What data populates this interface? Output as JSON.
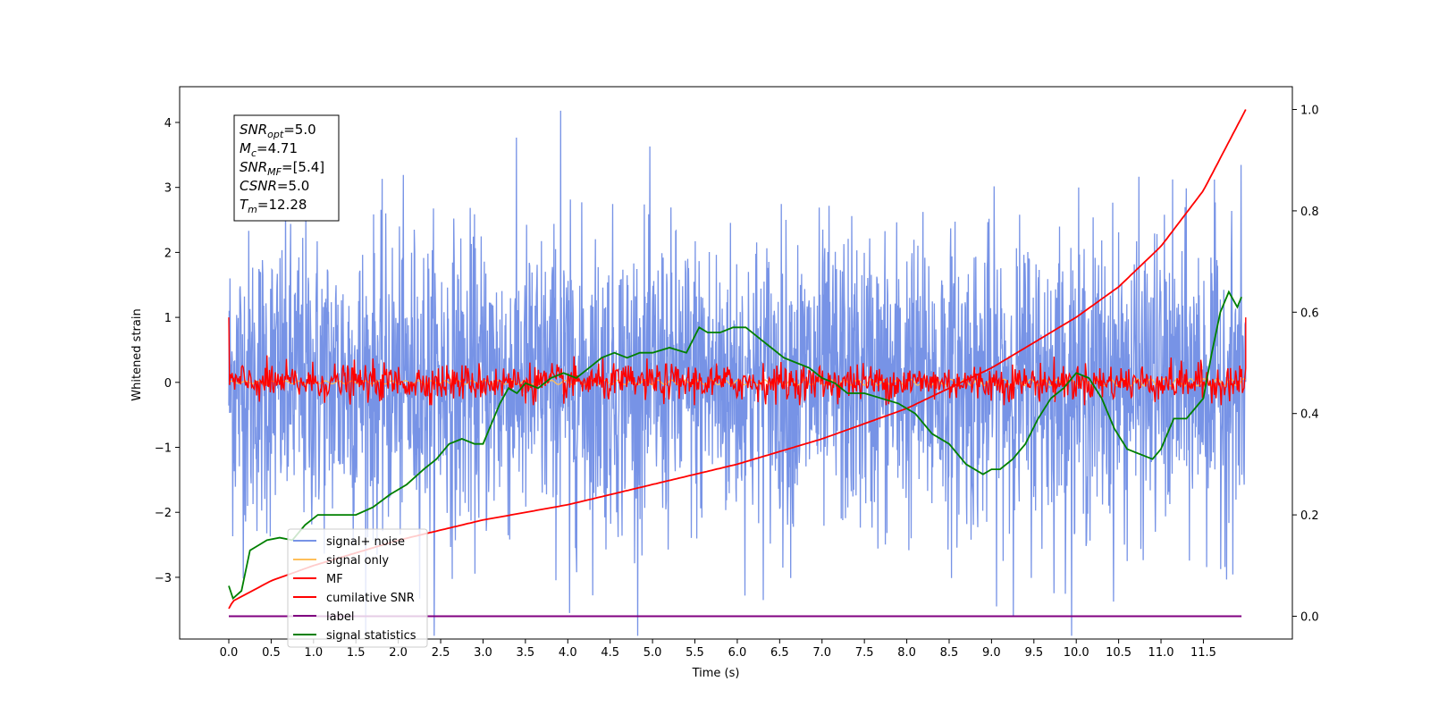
{
  "chart_data": {
    "type": "line",
    "xlabel": "Time (s)",
    "ylabel": "Whitened strain",
    "xlim": [
      -0.58,
      12.55
    ],
    "ylim": [
      -3.95,
      4.55
    ],
    "y2lim": [
      -0.045,
      1.045
    ],
    "xticks": [
      "0.0",
      "0.5",
      "1.0",
      "1.5",
      "2.0",
      "2.5",
      "3.0",
      "3.5",
      "4.0",
      "4.5",
      "5.0",
      "5.5",
      "6.0",
      "6.5",
      "7.0",
      "7.5",
      "8.0",
      "8.5",
      "9.0",
      "9.5",
      "10.0",
      "10.5",
      "11.0",
      "11.5"
    ],
    "yticks": [
      4,
      3,
      2,
      1,
      0,
      -1,
      -2,
      -3
    ],
    "y2ticks": [
      "1.0",
      "0.8",
      "0.6",
      "0.4",
      "0.2",
      "0.0"
    ],
    "info_box": {
      "lines": [
        {
          "sym": "SNR",
          "sub": "opt",
          "val": "=5.0"
        },
        {
          "sym": "M",
          "sub": "c",
          "val": "=4.71"
        },
        {
          "sym": "SNR",
          "sub": "MF",
          "val": "=[5.4]"
        },
        {
          "sym": "CSNR",
          "sub": "",
          "val": "=5.0"
        },
        {
          "sym": "T",
          "sub": "m",
          "val": "=12.28"
        }
      ]
    },
    "legend": {
      "placement": "lower-left",
      "entries": [
        {
          "label": "signal+ noise",
          "color": "#7793e6"
        },
        {
          "label": "signal only",
          "color": "#ffbf5a"
        },
        {
          "label": "MF",
          "color": "#ff0000"
        },
        {
          "label": "cumilative SNR",
          "color": "#ff0000"
        },
        {
          "label": "label",
          "color": "#800080"
        },
        {
          "label": "signal statistics",
          "color": "#008000"
        }
      ]
    },
    "series": [
      {
        "name": "signal+ noise",
        "axis": "left",
        "color": "#7793e6",
        "description_values": {
          "t_start": 0.0,
          "t_end": 12.0,
          "mean": 0.0,
          "band": [
            -2.5,
            2.5
          ],
          "max": 4.18,
          "min": -3.55
        }
      },
      {
        "name": "MF",
        "axis": "left",
        "color": "#ff0000",
        "description_values": {
          "t_start": 0.0,
          "t_end": 12.0,
          "mean": 0.0,
          "band": [
            -0.35,
            0.35
          ],
          "start_value": 1.0,
          "end_value": 1.0
        }
      },
      {
        "name": "cumilative SNR",
        "axis": "right",
        "color": "#ff0000",
        "x": [
          0.0,
          0.05,
          0.5,
          1.0,
          2.0,
          3.0,
          4.0,
          5.0,
          6.0,
          7.0,
          8.0,
          9.0,
          10.0,
          10.5,
          11.0,
          11.5,
          12.0
        ],
        "y": [
          0.015,
          0.03,
          0.07,
          0.1,
          0.15,
          0.19,
          0.22,
          0.26,
          0.3,
          0.35,
          0.41,
          0.49,
          0.59,
          0.65,
          0.73,
          0.84,
          1.0
        ]
      },
      {
        "name": "label",
        "axis": "right",
        "color": "#800080",
        "x": [
          0.0,
          11.95
        ],
        "y": [
          0.0,
          0.0
        ]
      },
      {
        "name": "signal statistics",
        "axis": "right",
        "color": "#008000",
        "x": [
          0.0,
          0.05,
          0.15,
          0.25,
          0.35,
          0.45,
          0.6,
          0.75,
          0.9,
          1.05,
          1.2,
          1.35,
          1.5,
          1.7,
          1.9,
          2.1,
          2.3,
          2.45,
          2.6,
          2.75,
          2.9,
          3.0,
          3.1,
          3.2,
          3.3,
          3.4,
          3.5,
          3.65,
          3.8,
          3.95,
          4.1,
          4.25,
          4.4,
          4.55,
          4.7,
          4.85,
          5.0,
          5.2,
          5.4,
          5.55,
          5.65,
          5.8,
          5.95,
          6.1,
          6.25,
          6.4,
          6.55,
          6.7,
          6.85,
          7.0,
          7.15,
          7.3,
          7.5,
          7.7,
          7.9,
          8.1,
          8.3,
          8.5,
          8.7,
          8.9,
          9.0,
          9.1,
          9.25,
          9.4,
          9.55,
          9.7,
          9.85,
          10.0,
          10.15,
          10.3,
          10.45,
          10.6,
          10.75,
          10.9,
          11.0,
          11.15,
          11.3,
          11.4,
          11.5,
          11.6,
          11.7,
          11.8,
          11.9,
          11.95
        ],
        "y": [
          0.06,
          0.035,
          0.05,
          0.13,
          0.14,
          0.15,
          0.155,
          0.15,
          0.18,
          0.2,
          0.2,
          0.2,
          0.2,
          0.215,
          0.24,
          0.26,
          0.29,
          0.31,
          0.34,
          0.35,
          0.34,
          0.34,
          0.38,
          0.42,
          0.45,
          0.44,
          0.46,
          0.45,
          0.47,
          0.48,
          0.47,
          0.49,
          0.51,
          0.52,
          0.51,
          0.52,
          0.52,
          0.53,
          0.52,
          0.57,
          0.56,
          0.56,
          0.57,
          0.57,
          0.55,
          0.53,
          0.51,
          0.5,
          0.49,
          0.47,
          0.46,
          0.44,
          0.44,
          0.43,
          0.42,
          0.4,
          0.36,
          0.34,
          0.3,
          0.28,
          0.29,
          0.29,
          0.31,
          0.34,
          0.39,
          0.43,
          0.45,
          0.48,
          0.47,
          0.43,
          0.37,
          0.33,
          0.32,
          0.31,
          0.33,
          0.39,
          0.39,
          0.41,
          0.43,
          0.52,
          0.6,
          0.64,
          0.61,
          0.63
        ]
      }
    ]
  }
}
